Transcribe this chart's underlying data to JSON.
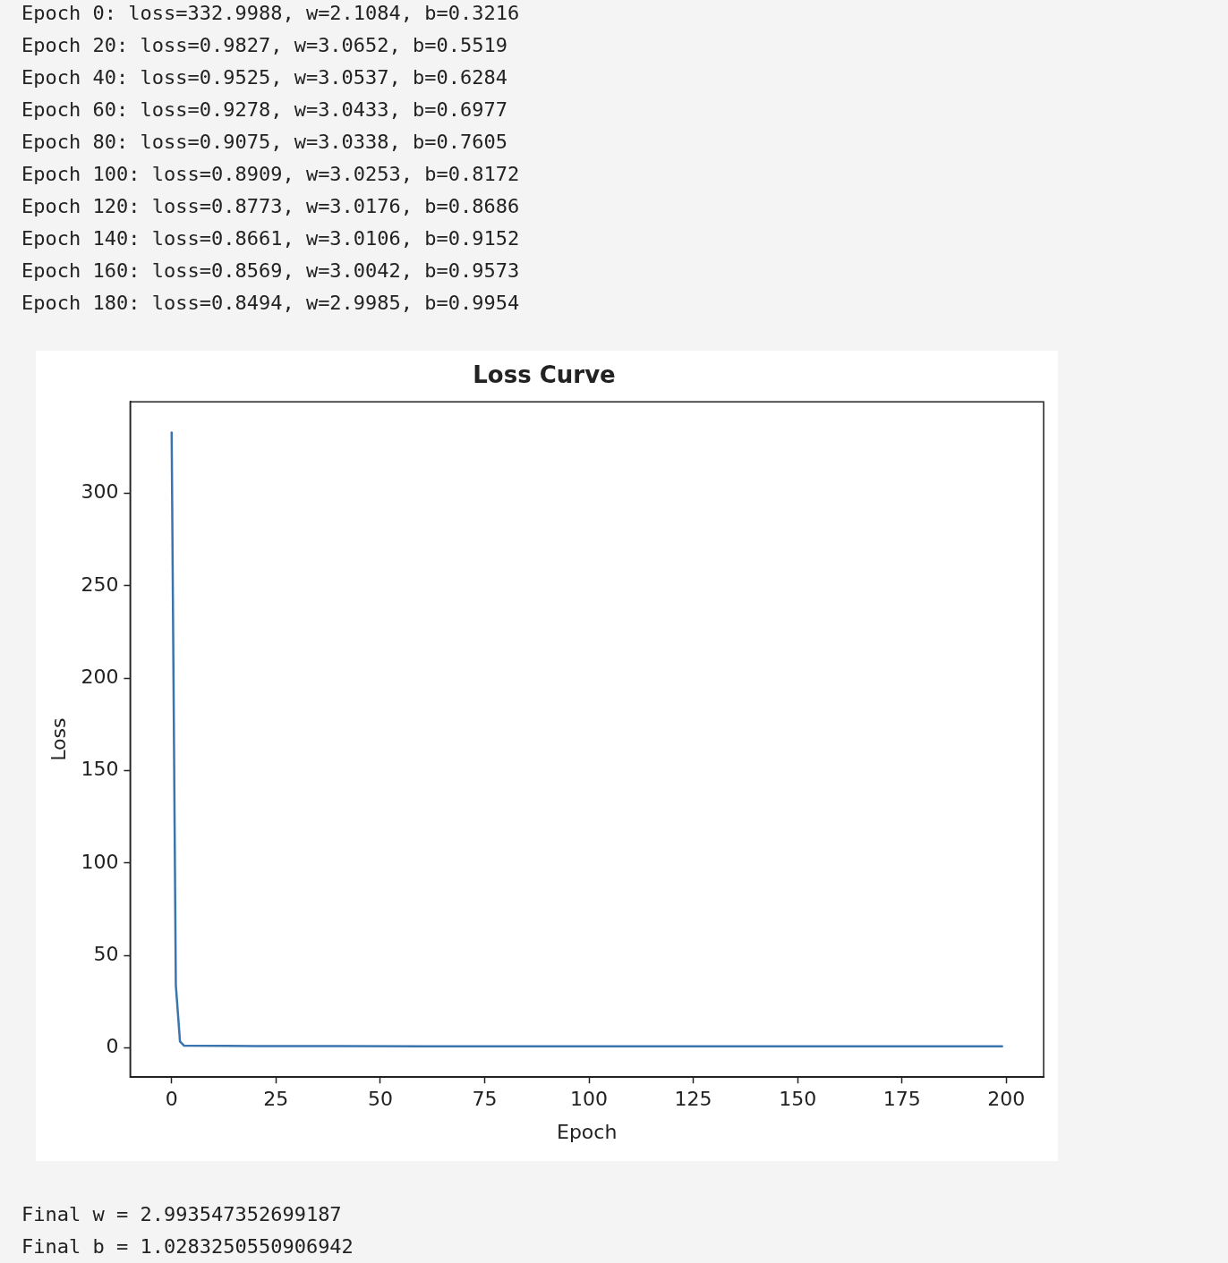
{
  "chart_data": {
    "type": "line",
    "title": "Loss Curve",
    "xlabel": "Epoch",
    "ylabel": "Loss",
    "x": [
      0,
      1,
      2,
      3,
      20,
      40,
      60,
      80,
      100,
      120,
      140,
      160,
      180,
      199
    ],
    "series": [
      {
        "color": "#3b75af",
        "values": [
          332.9988,
          34,
          3.5,
          1.2,
          0.9827,
          0.9525,
          0.9278,
          0.9075,
          0.8909,
          0.8773,
          0.8661,
          0.8569,
          0.8494,
          0.84
        ]
      }
    ],
    "xlim": [
      -9.95,
      208.95
    ],
    "xticks": [
      0,
      25,
      50,
      75,
      100,
      125,
      150,
      175,
      200
    ],
    "ylim": [
      -15.8,
      349.6
    ],
    "yticks": [
      0,
      50,
      100,
      150,
      200,
      250,
      300
    ],
    "grid": false,
    "legend": false,
    "marker": "none",
    "line_style": "solid",
    "annotations": [
      "Epoch 0: loss=332.9988, w=2.1084, b=0.3216",
      "Epoch 20: loss=0.9827, w=3.0652, b=0.5519",
      "Epoch 40: loss=0.9525, w=3.0537, b=0.6284",
      "Epoch 60: loss=0.9278, w=3.0433, b=0.6977",
      "Epoch 80: loss=0.9075, w=3.0338, b=0.7605",
      "Epoch 100: loss=0.8909, w=3.0253, b=0.8172",
      "Epoch 120: loss=0.8773, w=3.0176, b=0.8686",
      "Epoch 140: loss=0.8661, w=3.0106, b=0.9152",
      "Epoch 160: loss=0.8569, w=3.0042, b=0.9573",
      "Epoch 180: loss=0.8494, w=2.9985, b=0.9954",
      "Final w = 2.993547352699187",
      "Final b = 1.0283250550906942"
    ]
  }
}
